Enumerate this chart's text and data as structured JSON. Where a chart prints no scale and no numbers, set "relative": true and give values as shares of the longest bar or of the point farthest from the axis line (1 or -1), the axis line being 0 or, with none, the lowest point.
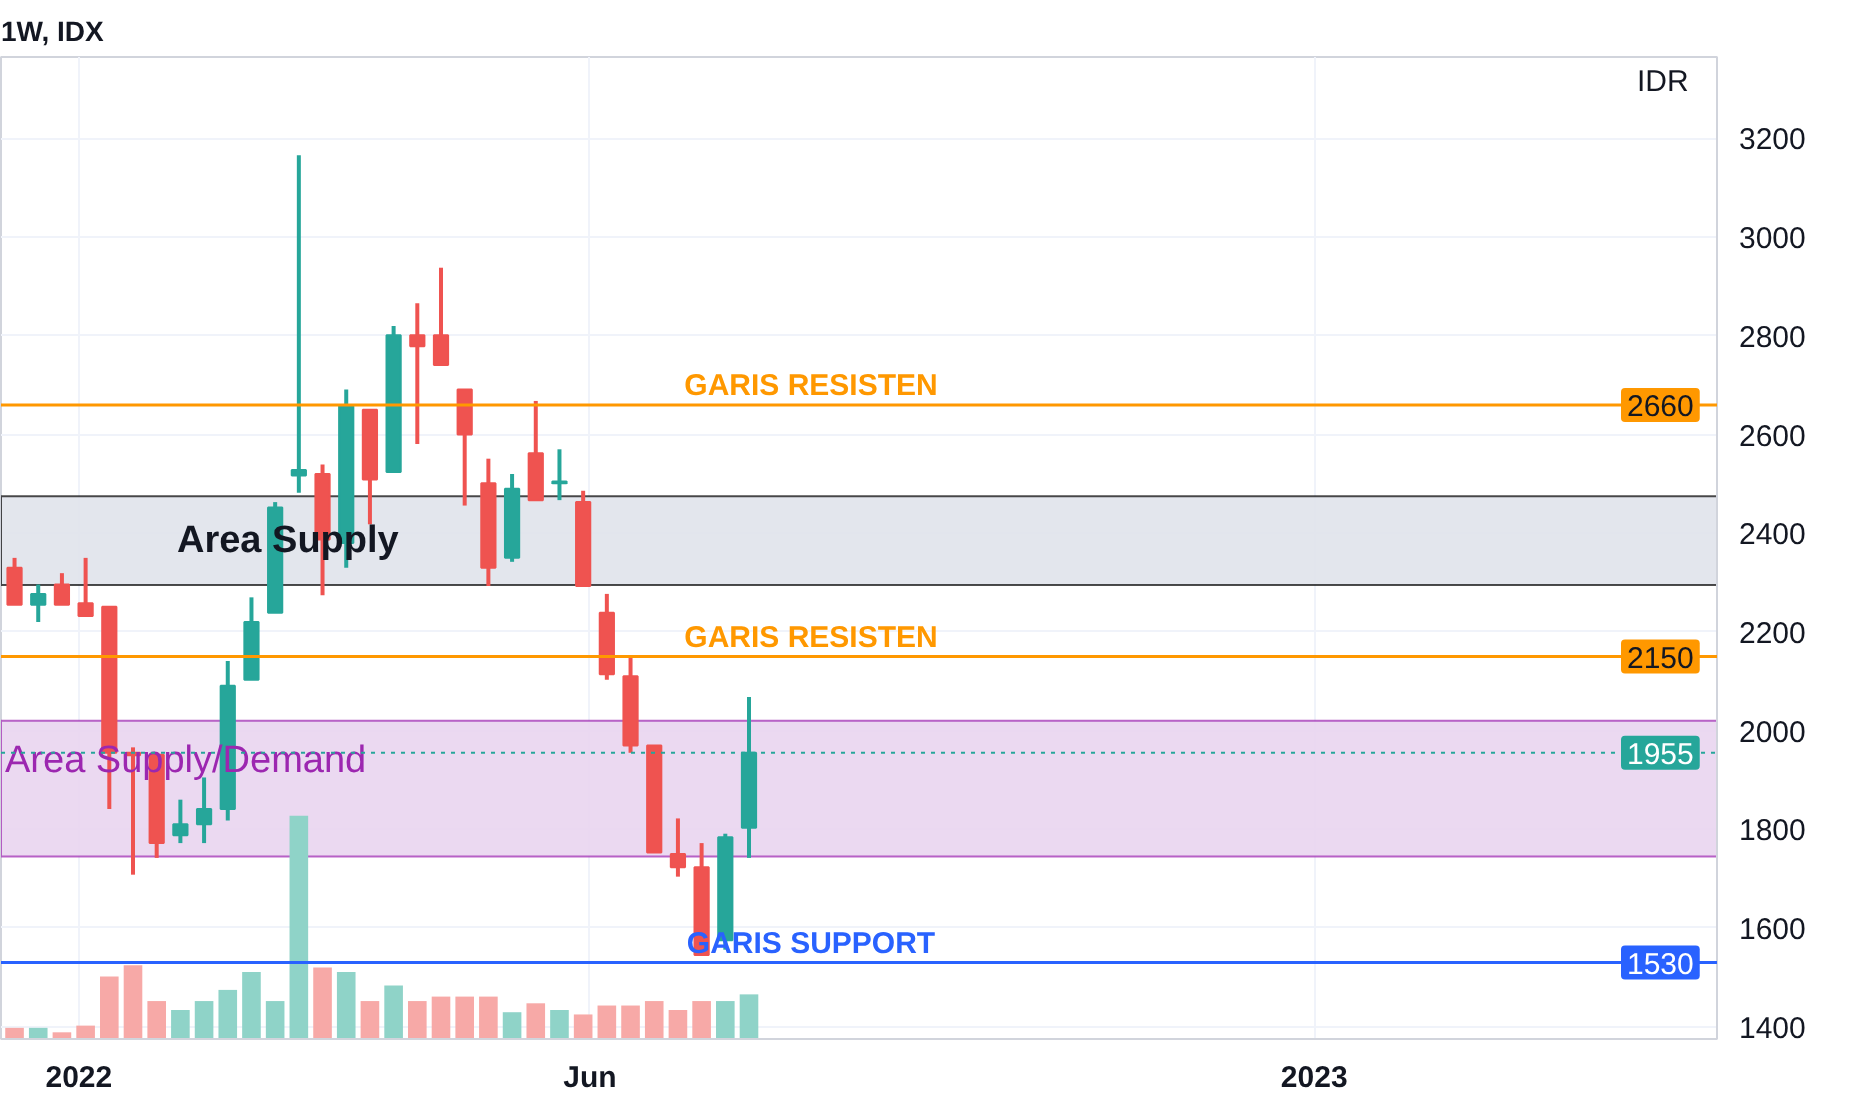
{
  "chart_data": [
    {
      "type": "candlestick",
      "title": "1W, IDX",
      "ylabel": "IDR",
      "x": [
        "2021-12-13",
        "2021-12-20",
        "2021-12-27",
        "2022-01-03",
        "2022-01-10",
        "2022-01-17",
        "2022-01-24",
        "2022-01-31",
        "2022-02-07",
        "2022-02-14",
        "2022-02-21",
        "2022-02-28",
        "2022-03-07",
        "2022-03-14",
        "2022-03-21",
        "2022-03-28",
        "2022-04-04",
        "2022-04-11",
        "2022-04-18",
        "2022-04-25",
        "2022-05-02",
        "2022-05-09",
        "2022-05-16",
        "2022-05-23",
        "2022-05-30",
        "2022-06-06",
        "2022-06-13",
        "2022-06-20",
        "2022-06-27",
        "2022-07-04",
        "2022-07-11",
        "2022-07-18"
      ],
      "ohlc": [
        [
          2330,
          2350,
          2255,
          2255
        ],
        [
          2255,
          2296,
          2220,
          2277
        ],
        [
          2296,
          2319,
          2255,
          2255
        ],
        [
          2258,
          2350,
          2232,
          2232
        ],
        [
          2251,
          2251,
          1841,
          1955
        ],
        [
          1955,
          1966,
          1708,
          1950
        ],
        [
          1951,
          1955,
          1742,
          1772
        ],
        [
          1788,
          1860,
          1772,
          1810
        ],
        [
          1810,
          1905,
          1772,
          1841
        ],
        [
          1841,
          2141,
          1818,
          2091
        ],
        [
          2103,
          2270,
          2103,
          2220
        ],
        [
          2239,
          2463,
          2239,
          2452
        ],
        [
          2517,
          3166,
          2482,
          2528
        ],
        [
          2520,
          2539,
          2274,
          2387
        ],
        [
          2380,
          2691,
          2330,
          2657
        ],
        [
          2650,
          2650,
          2418,
          2509
        ],
        [
          2524,
          2820,
          2524,
          2801
        ],
        [
          2801,
          2866,
          2581,
          2779
        ],
        [
          2801,
          2938,
          2741,
          2741
        ],
        [
          2691,
          2691,
          2456,
          2600
        ],
        [
          2501,
          2551,
          2293,
          2330
        ],
        [
          2350,
          2520,
          2342,
          2490
        ],
        [
          2562,
          2668,
          2467,
          2467
        ],
        [
          2501,
          2570,
          2467,
          2505
        ],
        [
          2463,
          2486,
          2293,
          2293
        ],
        [
          2239,
          2277,
          2103,
          2114
        ],
        [
          2110,
          2152,
          1955,
          1970
        ],
        [
          1970,
          1970,
          1753,
          1753
        ],
        [
          1750,
          1822,
          1704,
          1723
        ],
        [
          1723,
          1772,
          1545,
          1545
        ],
        [
          1575,
          1791,
          1556,
          1784
        ],
        [
          1803,
          2068,
          1742,
          1955
        ]
      ],
      "colors": [
        "#ef5350",
        "#26a69a",
        "#ef5350",
        "#ef5350",
        "#ef5350",
        "#ef5350",
        "#ef5350",
        "#26a69a",
        "#26a69a",
        "#26a69a",
        "#26a69a",
        "#26a69a",
        "#26a69a",
        "#ef5350",
        "#26a69a",
        "#ef5350",
        "#26a69a",
        "#ef5350",
        "#ef5350",
        "#ef5350",
        "#ef5350",
        "#26a69a",
        "#ef5350",
        "#26a69a",
        "#ef5350",
        "#ef5350",
        "#ef5350",
        "#ef5350",
        "#ef5350",
        "#ef5350",
        "#26a69a",
        "#26a69a"
      ],
      "annotations": [
        {
          "text": "2660",
          "y": 2660
        },
        {
          "text": "2150",
          "y": 2150
        },
        {
          "text": "1955",
          "y": 1955
        },
        {
          "text": "1530",
          "y": 1530
        }
      ],
      "xlim": [
        "2021-12-09",
        "2023-04-30"
      ],
      "xticks": [
        {
          "value": "2022-01-01",
          "label": "2022"
        },
        {
          "value": "2022-06-01",
          "label": "Jun"
        },
        {
          "value": "2023-01-01",
          "label": "2023"
        }
      ],
      "ylim": [
        1375,
        3365
      ],
      "yticks": [
        1400,
        1600,
        1800,
        2000,
        2200,
        2400,
        2600,
        2800,
        3000,
        3200
      ],
      "grid": true,
      "ref_lines": [
        {
          "axis": "y",
          "value": 2660,
          "label": "GARIS RESISTEN",
          "color": "#ff9800",
          "line_style": "solid"
        },
        {
          "axis": "y",
          "value": 2150,
          "label": "GARIS RESISTEN",
          "color": "#ff9800",
          "line_style": "solid"
        },
        {
          "axis": "y",
          "value": 1530,
          "label": "GARIS SUPPORT",
          "color": "#2962ff",
          "line_style": "solid"
        },
        {
          "axis": "y",
          "value": 1955,
          "color": "#26a69a",
          "line_style": "dotted"
        }
      ],
      "bands": [
        {
          "axis": "y",
          "from": 2295,
          "to": 2475,
          "label": "Area Supply",
          "color": "#e0e3eb"
        },
        {
          "axis": "y",
          "from": 1745,
          "to": 2020,
          "label": "Area Supply/Demand",
          "color": "#e9d5f0"
        }
      ]
    },
    {
      "type": "bar",
      "relative": true,
      "categories": [
        null,
        null,
        null,
        null,
        null,
        null,
        null,
        null,
        null,
        null,
        null,
        null,
        null,
        null,
        null,
        null,
        null,
        null,
        null,
        null,
        null,
        null,
        null,
        null,
        null,
        null,
        null,
        null,
        null,
        null,
        null,
        null
      ],
      "values": [
        0.05,
        0.05,
        0.03,
        0.06,
        0.28,
        0.33,
        0.17,
        0.13,
        0.17,
        0.22,
        0.3,
        0.17,
        1,
        0.32,
        0.3,
        0.17,
        0.24,
        0.17,
        0.19,
        0.19,
        0.19,
        0.12,
        0.16,
        0.13,
        0.11,
        0.15,
        0.15,
        0.17,
        0.13,
        0.17,
        0.17,
        0.2
      ],
      "colors": [
        "#f7a9a7",
        "#8fd3c8",
        "#f7a9a7",
        "#f7a9a7",
        "#f7a9a7",
        "#f7a9a7",
        "#f7a9a7",
        "#8fd3c8",
        "#8fd3c8",
        "#8fd3c8",
        "#8fd3c8",
        "#8fd3c8",
        "#8fd3c8",
        "#f7a9a7",
        "#8fd3c8",
        "#f7a9a7",
        "#8fd3c8",
        "#f7a9a7",
        "#f7a9a7",
        "#f7a9a7",
        "#f7a9a7",
        "#8fd3c8",
        "#f7a9a7",
        "#8fd3c8",
        "#f7a9a7",
        "#f7a9a7",
        "#f7a9a7",
        "#f7a9a7",
        "#f7a9a7",
        "#f7a9a7",
        "#8fd3c8",
        "#8fd3c8"
      ]
    }
  ]
}
